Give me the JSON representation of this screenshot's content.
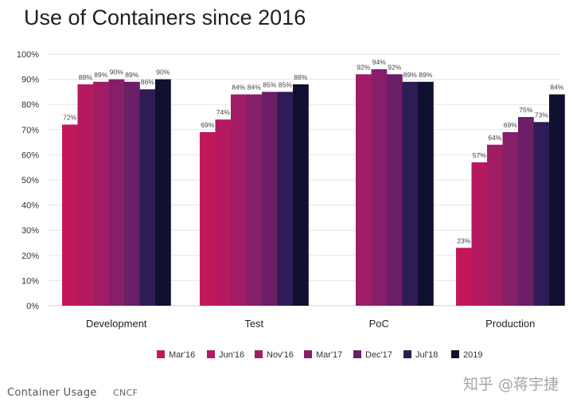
{
  "chart_data": {
    "type": "bar",
    "title": "Use of Containers since 2016",
    "xlabel": "",
    "ylabel": "",
    "ylim": [
      0,
      100
    ],
    "y_ticks": [
      "0%",
      "10%",
      "20%",
      "30%",
      "40%",
      "50%",
      "60%",
      "70%",
      "80%",
      "90%",
      "100%"
    ],
    "grid": "horizontal",
    "legend_position": "bottom",
    "categories": [
      "Development",
      "Test",
      "PoC",
      "Production"
    ],
    "series": [
      {
        "name": "Mar'16",
        "color": "#c2185b",
        "values": [
          72,
          69,
          null,
          23
        ]
      },
      {
        "name": "Jun'16",
        "color": "#b5195f",
        "values": [
          88,
          74,
          null,
          57
        ]
      },
      {
        "name": "Nov'16",
        "color": "#a01d66",
        "values": [
          89,
          84,
          92,
          64
        ]
      },
      {
        "name": "Mar'17",
        "color": "#861f68",
        "values": [
          90,
          84,
          94,
          69
        ]
      },
      {
        "name": "Dec'17",
        "color": "#6a1f66",
        "values": [
          89,
          85,
          92,
          75
        ]
      },
      {
        "name": "Jul'18",
        "color": "#2f1b55",
        "values": [
          86,
          85,
          89,
          73
        ]
      },
      {
        "name": "2019",
        "color": "#101030",
        "values": [
          90,
          88,
          89,
          84
        ]
      }
    ]
  },
  "caption": {
    "label": "Container Usage",
    "source": "CNCF"
  },
  "watermark": "知乎 @蒋宇捷"
}
